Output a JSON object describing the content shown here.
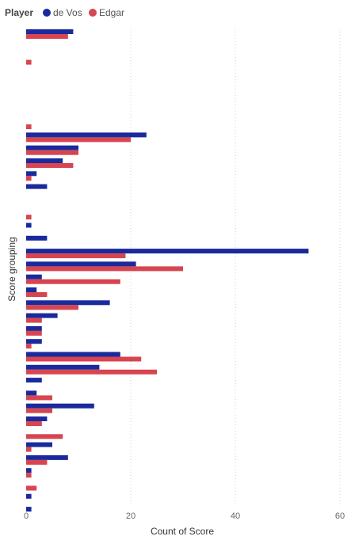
{
  "chart_data": {
    "type": "bar",
    "orientation": "horizontal",
    "legend": {
      "title": "Player",
      "position": "top-left"
    },
    "series": [
      {
        "name": "de Vos",
        "color": "#1a2a9c"
      },
      {
        "name": "Edgar",
        "color": "#d64550"
      }
    ],
    "rows": [
      {
        "deVos": 9,
        "edgar": 8
      },
      {
        "deVos": 0,
        "edgar": 0
      },
      {
        "deVos": 0,
        "edgar": 1
      },
      {
        "deVos": 0,
        "edgar": 0
      },
      {
        "deVos": 0,
        "edgar": 0
      },
      {
        "deVos": 0,
        "edgar": 0
      },
      {
        "deVos": 0,
        "edgar": 0
      },
      {
        "deVos": 0,
        "edgar": 1
      },
      {
        "deVos": 23,
        "edgar": 20
      },
      {
        "deVos": 10,
        "edgar": 10
      },
      {
        "deVos": 7,
        "edgar": 9
      },
      {
        "deVos": 2,
        "edgar": 1
      },
      {
        "deVos": 4,
        "edgar": 0
      },
      {
        "deVos": 0,
        "edgar": 0
      },
      {
        "deVos": 0,
        "edgar": 1
      },
      {
        "deVos": 1,
        "edgar": 0
      },
      {
        "deVos": 4,
        "edgar": 0
      },
      {
        "deVos": 54,
        "edgar": 19
      },
      {
        "deVos": 21,
        "edgar": 30
      },
      {
        "deVos": 3,
        "edgar": 18
      },
      {
        "deVos": 2,
        "edgar": 4
      },
      {
        "deVos": 16,
        "edgar": 10
      },
      {
        "deVos": 6,
        "edgar": 3
      },
      {
        "deVos": 3,
        "edgar": 3
      },
      {
        "deVos": 3,
        "edgar": 1
      },
      {
        "deVos": 18,
        "edgar": 22
      },
      {
        "deVos": 14,
        "edgar": 25
      },
      {
        "deVos": 3,
        "edgar": 0
      },
      {
        "deVos": 2,
        "edgar": 5
      },
      {
        "deVos": 13,
        "edgar": 5
      },
      {
        "deVos": 4,
        "edgar": 3
      },
      {
        "deVos": 0,
        "edgar": 7
      },
      {
        "deVos": 5,
        "edgar": 1
      },
      {
        "deVos": 8,
        "edgar": 4
      },
      {
        "deVos": 1,
        "edgar": 1
      },
      {
        "deVos": 0,
        "edgar": 2
      },
      {
        "deVos": 1,
        "edgar": 0
      },
      {
        "deVos": 1,
        "edgar": 0
      }
    ],
    "xlabel": "Count of Score",
    "ylabel": "Score grouping",
    "xlim": [
      0,
      60
    ],
    "xticks": [
      "0",
      "20",
      "40",
      "60"
    ],
    "grid": "vertical dotted"
  }
}
